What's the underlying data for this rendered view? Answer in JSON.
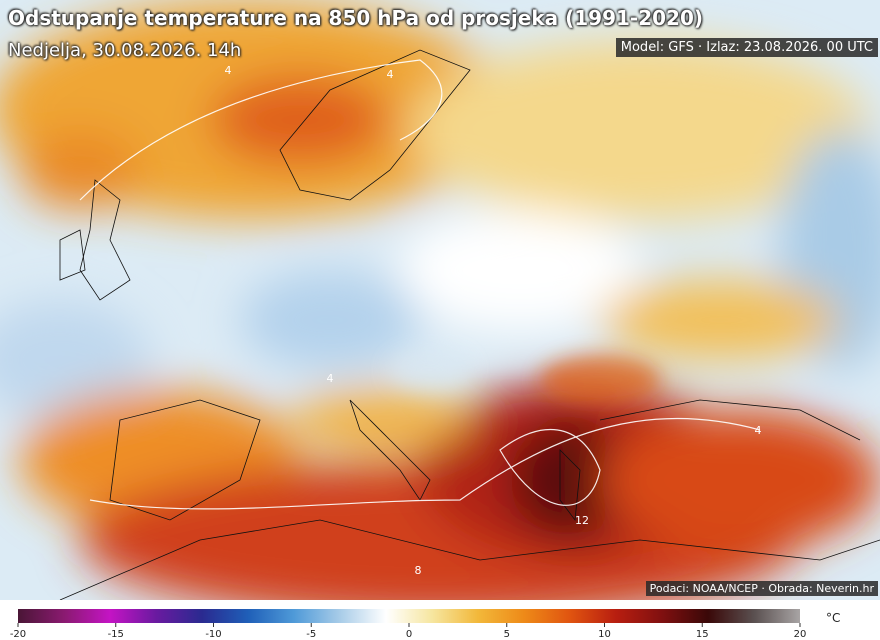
{
  "header": {
    "title": "Odstupanje temperature na 850 hPa od prosjeka (1991-2020)",
    "subtitle": "Nedjelja, 30.08.2026. 14h",
    "model_info": "Model: GFS · Izlaz: 23.08.2026. 00 UTC"
  },
  "credits": "Podaci: NOAA/NCEP · Obrada: Neverin.hr",
  "map": {
    "contour_labels": [
      4,
      4,
      4,
      8,
      12,
      4
    ]
  },
  "colorbar": {
    "ticks": [
      -20,
      -15,
      -10,
      -5,
      0,
      5,
      10,
      15,
      20
    ],
    "unit": "°C",
    "colors": [
      "#4a1636",
      "#8a1a70",
      "#c414c4",
      "#6a1aa0",
      "#2a2a90",
      "#1f5fb8",
      "#4f9ad8",
      "#a8cce8",
      "#ffffff",
      "#f6e6a0",
      "#f2b83a",
      "#ee8a18",
      "#e05410",
      "#b81e10",
      "#801010",
      "#3a0808",
      "#5a5050",
      "#a8a4a4"
    ]
  }
}
